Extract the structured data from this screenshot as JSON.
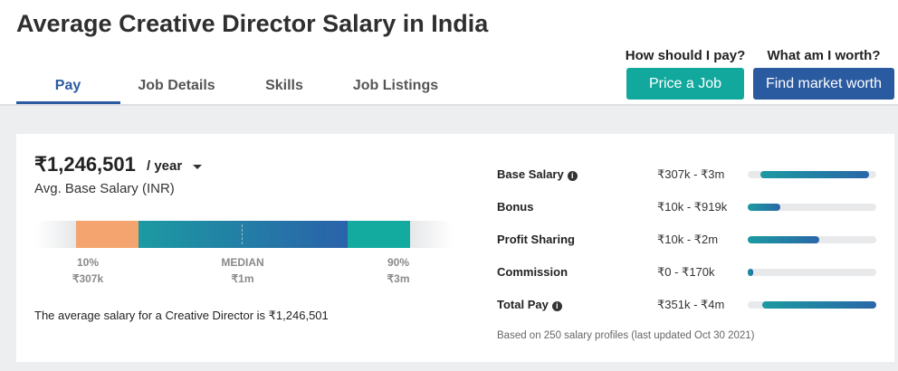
{
  "header": {
    "title": "Average Creative Director Salary in India",
    "tabs": [
      "Pay",
      "Job Details",
      "Skills",
      "Job Listings"
    ],
    "actions": [
      {
        "question": "How should I pay?",
        "button": "Price a Job"
      },
      {
        "question": "What am I worth?",
        "button": "Find market worth"
      }
    ]
  },
  "summary": {
    "amount": "₹1,246,501",
    "period": "/ year",
    "label": "Avg. Base Salary (INR)",
    "distribution": [
      {
        "label": "10%",
        "value": "₹307k"
      },
      {
        "label": "MEDIAN",
        "value": "₹1m"
      },
      {
        "label": "90%",
        "value": "₹3m"
      }
    ],
    "sentence": "The average salary for a Creative Director is ₹1,246,501"
  },
  "breakdown": {
    "rows": [
      {
        "name": "Base Salary",
        "info": true,
        "range": "₹307k - ₹3m"
      },
      {
        "name": "Bonus",
        "info": false,
        "range": "₹10k - ₹919k"
      },
      {
        "name": "Profit Sharing",
        "info": false,
        "range": "₹10k - ₹2m"
      },
      {
        "name": "Commission",
        "info": false,
        "range": "₹0 - ₹170k"
      },
      {
        "name": "Total Pay",
        "info": true,
        "range": "₹351k - ₹4m"
      }
    ],
    "footnote": "Based on 250 salary profiles (last updated Oct 30 2021)"
  }
}
